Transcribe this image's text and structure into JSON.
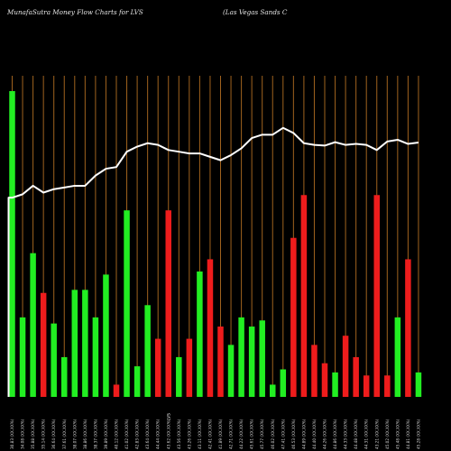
{
  "header": {
    "title": "MunafaSutra  Money Flow  Charts for LVS",
    "company": "(Las Vegas Sands C"
  },
  "chart_data": {
    "type": "bar",
    "title": "MunafaSutra  Money Flow  Charts for LVS",
    "subtitle": "(Las Vegas Sands C",
    "grid": true,
    "bar_ylim": [
      0,
      100
    ],
    "line_ylim": [
      0,
      100
    ],
    "categories": [
      "30.83 (XX.XX%)",
      "34.08 (XX.XX%)",
      "35.88 (XX.XX%)",
      "35.14 (XX.XX%)",
      "36.64 (XX.XX%)",
      "37.61 (XX.XX%)",
      "38.07 (XX.XX%)",
      "38.86 (XX.XX%)",
      "38.37 (XX.XX%)",
      "39.89 (XX.XX%)",
      "40.12 (XX.XX%)",
      "41.02 (XX.XX%)",
      "42.83 (XX.XX%)",
      "43.64 (XX.XX%)",
      "44.44 (XX.XX%)",
      "43.62 (XX.XX%)",
      "43.56 (XX.XX%)",
      "43.26 (XX.XX%)",
      "43.11 (XX.XX%)",
      "42.41 (XX.XX%)",
      "41.89 (XX.XX%)",
      "42.71 (XX.XX%)",
      "44.22 (XX.XX%)",
      "45.61 (XX.XX%)",
      "45.77 (XX.XX%)",
      "46.02 (XX.XX%)",
      "47.41 (XX.XX%)",
      "46.53 (XX.XX%)",
      "44.89 (XX.XX%)",
      "44.40 (XX.XX%)",
      "44.26 (XX.XX%)",
      "44.86 (XX.XX%)",
      "44.33 (XX.XX%)",
      "44.48 (XX.XX%)",
      "44.31 (XX.XX%)",
      "43.21 (XX.XX%)",
      "45.02 (XX.XX%)",
      "45.48 (XX.XX%)",
      "44.81 (XX.XX%)",
      "45.28 (XX.XX%)"
    ],
    "series": [
      {
        "type": "bar",
        "values": [
          100,
          26,
          47,
          34,
          24,
          13,
          35,
          35,
          26,
          40,
          4,
          61,
          10,
          30,
          19,
          61,
          13,
          19,
          41,
          45,
          23,
          17,
          26,
          23,
          25,
          4,
          9,
          52,
          66,
          17,
          11,
          8,
          20,
          13,
          7,
          66,
          7,
          26,
          45,
          8
        ],
        "colors": [
          "g",
          "g",
          "g",
          "r",
          "g",
          "g",
          "g",
          "g",
          "g",
          "g",
          "r",
          "g",
          "g",
          "g",
          "r",
          "r",
          "g",
          "r",
          "g",
          "r",
          "r",
          "g",
          "g",
          "g",
          "g",
          "g",
          "g",
          "r",
          "r",
          "r",
          "r",
          "g",
          "r",
          "r",
          "r",
          "r",
          "r",
          "g",
          "r",
          "g"
        ]
      },
      {
        "type": "line",
        "values": [
          58.5,
          59.5,
          62,
          60,
          61,
          61.5,
          62,
          62,
          65,
          67,
          67.5,
          72,
          73.5,
          74.5,
          74,
          72.5,
          72,
          71.5,
          71.5,
          70.5,
          69.5,
          71,
          73,
          76,
          77,
          77,
          79,
          77.5,
          74.5,
          74,
          73.8,
          74.8,
          74,
          74.3,
          74,
          72.5,
          75,
          75.5,
          74.3,
          74.7
        ]
      }
    ],
    "marker_label": "LVS",
    "marker_index": 15
  },
  "colors": {
    "up": "#22ee22",
    "down": "#ee1c1c",
    "grid": "#a0631e",
    "line": "#ffffff",
    "background": "#000000",
    "text": "#e6e6e6"
  }
}
